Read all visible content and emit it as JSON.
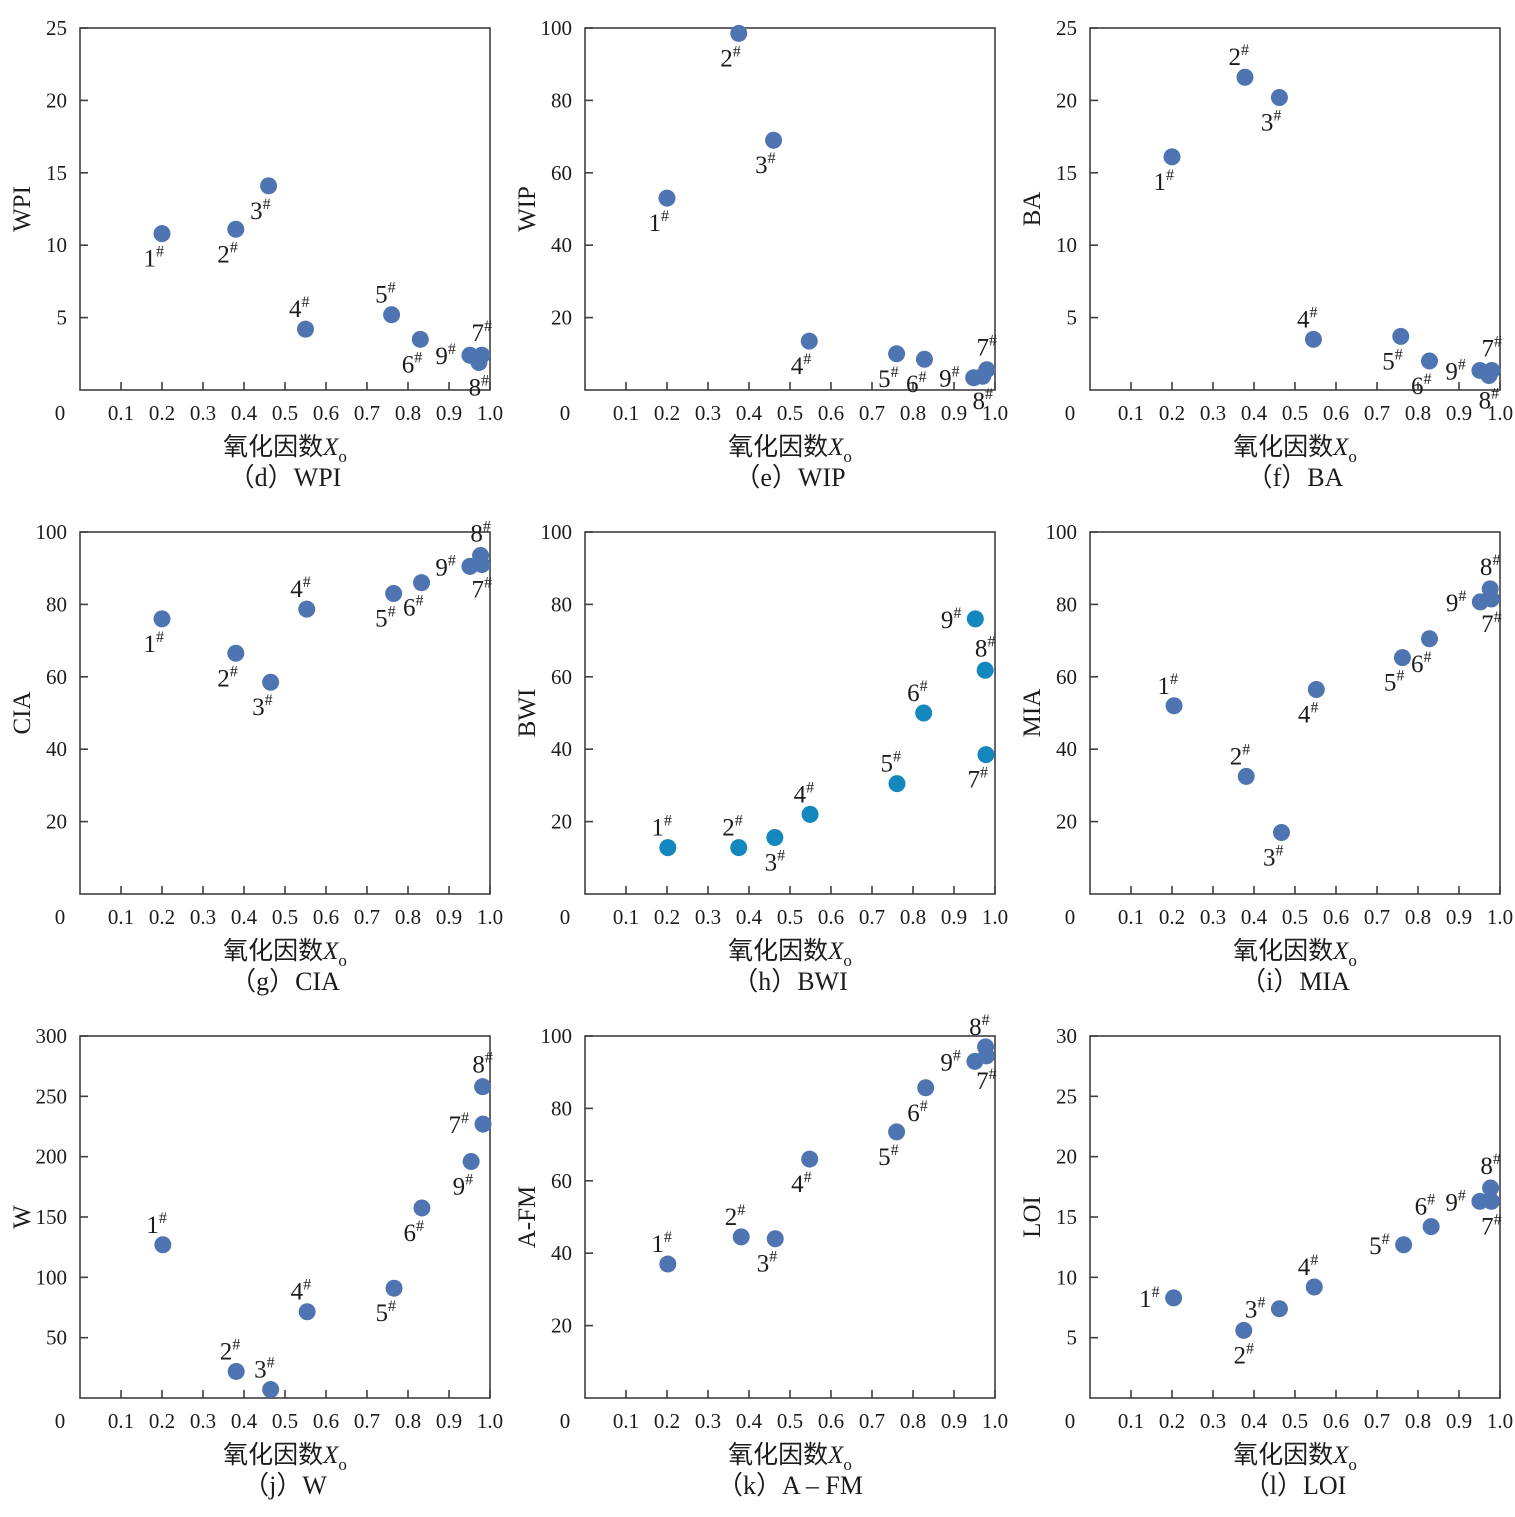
{
  "page": {
    "background": "#ffffff",
    "default_marker_color": "#4f74b2",
    "bwi_marker_color": "#1487be"
  },
  "chart_data": [
    {
      "id": "d",
      "type": "scatter",
      "caption": "（d）WPI",
      "ylabel": "WPI",
      "xlabel": {
        "prefix": "氧化因数",
        "var": "X",
        "sub": "o"
      },
      "xlim": [
        0,
        1.0
      ],
      "ylim": [
        0,
        25
      ],
      "grid": false,
      "legend": null,
      "xticks": [
        "0.1",
        "0.2",
        "0.3",
        "0.4",
        "0.5",
        "0.6",
        "0.7",
        "0.8",
        "0.9",
        "1.0"
      ],
      "yticks": [
        5,
        10,
        15,
        20,
        25
      ],
      "origin_label": "0",
      "marker_color": "#4f74b2",
      "points": [
        {
          "name": "1#",
          "x": 0.2,
          "y": 10.8,
          "anchor": "bl"
        },
        {
          "name": "2#",
          "x": 0.38,
          "y": 11.1,
          "anchor": "bl"
        },
        {
          "name": "3#",
          "x": 0.46,
          "y": 14.1,
          "anchor": "bl"
        },
        {
          "name": "4#",
          "x": 0.55,
          "y": 4.2,
          "anchor": "al"
        },
        {
          "name": "5#",
          "x": 0.76,
          "y": 5.2,
          "anchor": "al"
        },
        {
          "name": "6#",
          "x": 0.83,
          "y": 3.5,
          "anchor": "bl"
        },
        {
          "name": "7#",
          "x": 0.98,
          "y": 2.4,
          "anchor": "a"
        },
        {
          "name": "8#",
          "x": 0.973,
          "y": 1.9,
          "anchor": "b"
        },
        {
          "name": "9#",
          "x": 0.951,
          "y": 2.4,
          "anchor": "l"
        }
      ]
    },
    {
      "id": "e",
      "type": "scatter",
      "caption": "（e）WIP",
      "ylabel": "WIP",
      "xlabel": {
        "prefix": "氧化因数",
        "var": "X",
        "sub": "o"
      },
      "xlim": [
        0,
        1.0
      ],
      "ylim": [
        0,
        100
      ],
      "grid": false,
      "legend": null,
      "xticks": [
        "0.1",
        "0.2",
        "0.3",
        "0.4",
        "0.5",
        "0.6",
        "0.7",
        "0.8",
        "0.9",
        "1.0"
      ],
      "yticks": [
        20,
        40,
        60,
        80,
        100
      ],
      "origin_label": "0",
      "marker_color": "#4f74b2",
      "points": [
        {
          "name": "1#",
          "x": 0.2,
          "y": 53,
          "anchor": "bl"
        },
        {
          "name": "2#",
          "x": 0.375,
          "y": 98.5,
          "anchor": "bl"
        },
        {
          "name": "3#",
          "x": 0.46,
          "y": 69,
          "anchor": "bl"
        },
        {
          "name": "4#",
          "x": 0.547,
          "y": 13.5,
          "anchor": "bl"
        },
        {
          "name": "5#",
          "x": 0.76,
          "y": 10,
          "anchor": "bl"
        },
        {
          "name": "6#",
          "x": 0.828,
          "y": 8.5,
          "anchor": "bl"
        },
        {
          "name": "7#",
          "x": 0.98,
          "y": 5.6,
          "anchor": "a"
        },
        {
          "name": "8#",
          "x": 0.97,
          "y": 3.8,
          "anchor": "b"
        },
        {
          "name": "9#",
          "x": 0.948,
          "y": 3.4,
          "anchor": "l"
        }
      ]
    },
    {
      "id": "f",
      "type": "scatter",
      "caption": "（f）BA",
      "ylabel": "BA",
      "xlabel": {
        "prefix": "氧化因数",
        "var": "X",
        "sub": "o"
      },
      "xlim": [
        0,
        1.0
      ],
      "ylim": [
        0,
        25
      ],
      "grid": false,
      "legend": null,
      "xticks": [
        "0.1",
        "0.2",
        "0.3",
        "0.4",
        "0.5",
        "0.6",
        "0.7",
        "0.8",
        "0.9",
        "1.0"
      ],
      "yticks": [
        5,
        10,
        15,
        20,
        25
      ],
      "origin_label": "0",
      "marker_color": "#4f74b2",
      "points": [
        {
          "name": "1#",
          "x": 0.2,
          "y": 16.1,
          "anchor": "bl"
        },
        {
          "name": "2#",
          "x": 0.378,
          "y": 21.6,
          "anchor": "al"
        },
        {
          "name": "3#",
          "x": 0.462,
          "y": 20.2,
          "anchor": "bl"
        },
        {
          "name": "4#",
          "x": 0.545,
          "y": 3.5,
          "anchor": "al"
        },
        {
          "name": "5#",
          "x": 0.758,
          "y": 3.7,
          "anchor": "bl"
        },
        {
          "name": "6#",
          "x": 0.828,
          "y": 2.0,
          "anchor": "bl"
        },
        {
          "name": "7#",
          "x": 0.98,
          "y": 1.35,
          "anchor": "a"
        },
        {
          "name": "8#",
          "x": 0.973,
          "y": 1.0,
          "anchor": "b"
        },
        {
          "name": "9#",
          "x": 0.951,
          "y": 1.35,
          "anchor": "l"
        }
      ]
    },
    {
      "id": "g",
      "type": "scatter",
      "caption": "（g）CIA",
      "ylabel": "CIA",
      "xlabel": {
        "prefix": "氧化因数",
        "var": "X",
        "sub": "o"
      },
      "xlim": [
        0,
        1.0
      ],
      "ylim": [
        0,
        100
      ],
      "grid": false,
      "legend": null,
      "xticks": [
        "0.1",
        "0.2",
        "0.3",
        "0.4",
        "0.5",
        "0.6",
        "0.7",
        "0.8",
        "0.9",
        "1.0"
      ],
      "yticks": [
        20,
        40,
        60,
        80,
        100
      ],
      "origin_label": "0",
      "marker_color": "#4f74b2",
      "points": [
        {
          "name": "1#",
          "x": 0.2,
          "y": 76,
          "anchor": "bl"
        },
        {
          "name": "2#",
          "x": 0.38,
          "y": 66.5,
          "anchor": "bl"
        },
        {
          "name": "3#",
          "x": 0.465,
          "y": 58.5,
          "anchor": "bl"
        },
        {
          "name": "4#",
          "x": 0.553,
          "y": 78.7,
          "anchor": "al"
        },
        {
          "name": "5#",
          "x": 0.765,
          "y": 83,
          "anchor": "bl"
        },
        {
          "name": "6#",
          "x": 0.833,
          "y": 86,
          "anchor": "bl"
        },
        {
          "name": "7#",
          "x": 0.98,
          "y": 91,
          "anchor": "b"
        },
        {
          "name": "8#",
          "x": 0.977,
          "y": 93.5,
          "anchor": "a"
        },
        {
          "name": "9#",
          "x": 0.951,
          "y": 90.5,
          "anchor": "l"
        }
      ]
    },
    {
      "id": "h",
      "type": "scatter",
      "caption": "（h）BWI",
      "ylabel": "BWI",
      "xlabel": {
        "prefix": "氧化因数",
        "var": "X",
        "sub": "o"
      },
      "xlim": [
        0,
        1.0
      ],
      "ylim": [
        0,
        100
      ],
      "grid": false,
      "legend": null,
      "xticks": [
        "0.1",
        "0.2",
        "0.3",
        "0.4",
        "0.5",
        "0.6",
        "0.7",
        "0.8",
        "0.9",
        "1.0"
      ],
      "yticks": [
        20,
        40,
        60,
        80,
        100
      ],
      "origin_label": "0",
      "marker_color": "#1487be",
      "points": [
        {
          "name": "1#",
          "x": 0.202,
          "y": 12.8,
          "anchor": "al"
        },
        {
          "name": "2#",
          "x": 0.375,
          "y": 12.8,
          "anchor": "al"
        },
        {
          "name": "3#",
          "x": 0.463,
          "y": 15.6,
          "anchor": "b"
        },
        {
          "name": "4#",
          "x": 0.549,
          "y": 22,
          "anchor": "al"
        },
        {
          "name": "5#",
          "x": 0.761,
          "y": 30.5,
          "anchor": "al"
        },
        {
          "name": "6#",
          "x": 0.826,
          "y": 50,
          "anchor": "al"
        },
        {
          "name": "7#",
          "x": 0.978,
          "y": 38.5,
          "anchor": "bl"
        },
        {
          "name": "8#",
          "x": 0.976,
          "y": 61.8,
          "anchor": "a"
        },
        {
          "name": "9#",
          "x": 0.952,
          "y": 76,
          "anchor": "l"
        }
      ]
    },
    {
      "id": "i",
      "type": "scatter",
      "caption": "（i）MIA",
      "ylabel": "MIA",
      "xlabel": {
        "prefix": "氧化因数",
        "var": "X",
        "sub": "o"
      },
      "xlim": [
        0,
        1.0
      ],
      "ylim": [
        0,
        100
      ],
      "grid": false,
      "legend": null,
      "xticks": [
        "0.1",
        "0.2",
        "0.3",
        "0.4",
        "0.5",
        "0.6",
        "0.7",
        "0.8",
        "0.9",
        "1.0"
      ],
      "yticks": [
        20,
        40,
        60,
        80,
        100
      ],
      "origin_label": "0",
      "marker_color": "#4f74b2",
      "points": [
        {
          "name": "1#",
          "x": 0.205,
          "y": 52,
          "anchor": "al"
        },
        {
          "name": "2#",
          "x": 0.381,
          "y": 32.5,
          "anchor": "al"
        },
        {
          "name": "3#",
          "x": 0.467,
          "y": 17,
          "anchor": "bl"
        },
        {
          "name": "4#",
          "x": 0.552,
          "y": 56.5,
          "anchor": "bl"
        },
        {
          "name": "5#",
          "x": 0.762,
          "y": 65.3,
          "anchor": "bl"
        },
        {
          "name": "6#",
          "x": 0.828,
          "y": 70.5,
          "anchor": "bl"
        },
        {
          "name": "7#",
          "x": 0.979,
          "y": 81.5,
          "anchor": "b"
        },
        {
          "name": "8#",
          "x": 0.976,
          "y": 84.3,
          "anchor": "a"
        },
        {
          "name": "9#",
          "x": 0.952,
          "y": 80.7,
          "anchor": "l"
        }
      ]
    },
    {
      "id": "j",
      "type": "scatter",
      "caption": "（j）W",
      "ylabel": "W",
      "xlabel": {
        "prefix": "氧化因数",
        "var": "X",
        "sub": "o"
      },
      "xlim": [
        0,
        1.0
      ],
      "ylim": [
        0,
        300
      ],
      "grid": false,
      "legend": null,
      "xticks": [
        "0.1",
        "0.2",
        "0.3",
        "0.4",
        "0.5",
        "0.6",
        "0.7",
        "0.8",
        "0.9",
        "1.0"
      ],
      "yticks": [
        50,
        100,
        150,
        200,
        250,
        300
      ],
      "origin_label": "0",
      "marker_color": "#4f74b2",
      "points": [
        {
          "name": "1#",
          "x": 0.202,
          "y": 127,
          "anchor": "al"
        },
        {
          "name": "2#",
          "x": 0.381,
          "y": 22,
          "anchor": "al"
        },
        {
          "name": "3#",
          "x": 0.465,
          "y": 7,
          "anchor": "al"
        },
        {
          "name": "4#",
          "x": 0.554,
          "y": 71.5,
          "anchor": "al"
        },
        {
          "name": "5#",
          "x": 0.766,
          "y": 91,
          "anchor": "bl"
        },
        {
          "name": "6#",
          "x": 0.834,
          "y": 157.5,
          "anchor": "bl"
        },
        {
          "name": "7#",
          "x": 0.983,
          "y": 227,
          "anchor": "l"
        },
        {
          "name": "8#",
          "x": 0.982,
          "y": 258,
          "anchor": "a"
        },
        {
          "name": "9#",
          "x": 0.954,
          "y": 196,
          "anchor": "bl"
        }
      ]
    },
    {
      "id": "k",
      "type": "scatter",
      "caption": "（k）A – FM",
      "ylabel": "A-FM",
      "xlabel": {
        "prefix": "氧化因数",
        "var": "X",
        "sub": "o"
      },
      "xlim": [
        0,
        1.0
      ],
      "ylim": [
        0,
        100
      ],
      "grid": false,
      "legend": null,
      "xticks": [
        "0.1",
        "0.2",
        "0.3",
        "0.4",
        "0.5",
        "0.6",
        "0.7",
        "0.8",
        "0.9",
        "1.0"
      ],
      "yticks": [
        20,
        40,
        60,
        80,
        100
      ],
      "origin_label": "0",
      "marker_color": "#4f74b2",
      "points": [
        {
          "name": "1#",
          "x": 0.202,
          "y": 37,
          "anchor": "al"
        },
        {
          "name": "2#",
          "x": 0.381,
          "y": 44.5,
          "anchor": "al"
        },
        {
          "name": "3#",
          "x": 0.464,
          "y": 44,
          "anchor": "bl"
        },
        {
          "name": "4#",
          "x": 0.548,
          "y": 66,
          "anchor": "bl"
        },
        {
          "name": "5#",
          "x": 0.76,
          "y": 73.5,
          "anchor": "bl"
        },
        {
          "name": "6#",
          "x": 0.831,
          "y": 85.7,
          "anchor": "bl"
        },
        {
          "name": "7#",
          "x": 0.979,
          "y": 94.5,
          "anchor": "b"
        },
        {
          "name": "8#",
          "x": 0.977,
          "y": 97,
          "anchor": "al"
        },
        {
          "name": "9#",
          "x": 0.951,
          "y": 93,
          "anchor": "l"
        }
      ]
    },
    {
      "id": "l",
      "type": "scatter",
      "caption": "（l）LOI",
      "ylabel": "LOI",
      "xlabel": {
        "prefix": "氧化因数",
        "var": "X",
        "sub": "o"
      },
      "xlim": [
        0,
        1.0
      ],
      "ylim": [
        0,
        30
      ],
      "grid": false,
      "legend": null,
      "xticks": [
        "0.1",
        "0.2",
        "0.3",
        "0.4",
        "0.5",
        "0.6",
        "0.7",
        "0.8",
        "0.9",
        "1.0"
      ],
      "yticks": [
        5,
        10,
        15,
        20,
        25,
        30
      ],
      "origin_label": "0",
      "marker_color": "#4f74b2",
      "points": [
        {
          "name": "1#",
          "x": 0.204,
          "y": 8.3,
          "anchor": "l"
        },
        {
          "name": "2#",
          "x": 0.375,
          "y": 5.6,
          "anchor": "b"
        },
        {
          "name": "3#",
          "x": 0.462,
          "y": 7.4,
          "anchor": "l"
        },
        {
          "name": "4#",
          "x": 0.547,
          "y": 9.2,
          "anchor": "al"
        },
        {
          "name": "5#",
          "x": 0.765,
          "y": 12.7,
          "anchor": "l"
        },
        {
          "name": "6#",
          "x": 0.832,
          "y": 14.2,
          "anchor": "al"
        },
        {
          "name": "7#",
          "x": 0.979,
          "y": 16.3,
          "anchor": "b"
        },
        {
          "name": "8#",
          "x": 0.977,
          "y": 17.4,
          "anchor": "a"
        },
        {
          "name": "9#",
          "x": 0.951,
          "y": 16.3,
          "anchor": "l"
        }
      ]
    }
  ]
}
